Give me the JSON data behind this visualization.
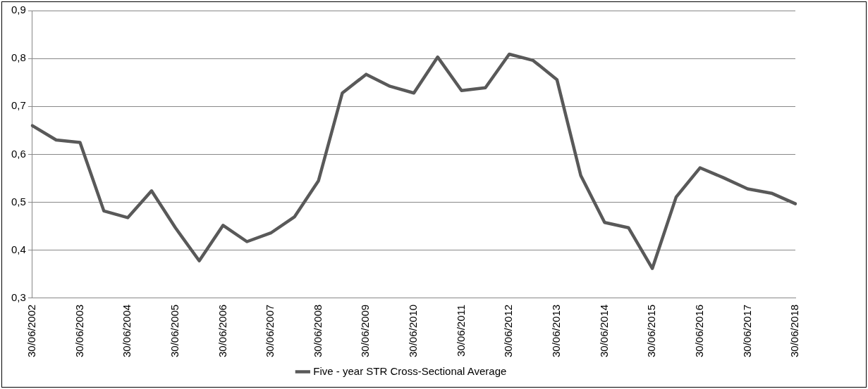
{
  "chart_data": {
    "type": "line",
    "categories": [
      "30/06/2002",
      null,
      "30/06/2003",
      null,
      "30/06/2004",
      null,
      "30/06/2005",
      null,
      "30/06/2006",
      null,
      "30/06/2007",
      null,
      "30/06/2008",
      null,
      "30/06/2009",
      null,
      "30/06/2010",
      null,
      "30/06/2011",
      null,
      "30/06/2012",
      null,
      "30/06/2013",
      null,
      "30/06/2014",
      null,
      "30/06/2015",
      null,
      "30/06/2016",
      null,
      "30/06/2017",
      null,
      "30/06/2018"
    ],
    "series": [
      {
        "name": "Five - year STR Cross-Sectional Average",
        "color": "#595959",
        "values": [
          0.66,
          0.63,
          0.625,
          0.482,
          0.468,
          0.524,
          0.447,
          0.378,
          0.452,
          0.418,
          0.436,
          0.47,
          0.545,
          0.728,
          0.767,
          0.742,
          0.728,
          0.803,
          0.733,
          0.739,
          0.809,
          0.796,
          0.756,
          0.556,
          0.458,
          0.447,
          0.362,
          0.511,
          0.572,
          0.551,
          0.528,
          0.519,
          0.497
        ]
      }
    ],
    "ylim": [
      0.3,
      0.9
    ],
    "yticks": [
      {
        "value": 0.3,
        "label": "0,3"
      },
      {
        "value": 0.4,
        "label": "0,4"
      },
      {
        "value": 0.5,
        "label": "0,5"
      },
      {
        "value": 0.6,
        "label": "0,6"
      },
      {
        "value": 0.7,
        "label": "0,7"
      },
      {
        "value": 0.8,
        "label": "0,8"
      },
      {
        "value": 0.9,
        "label": "0,9"
      }
    ],
    "grid": "y",
    "legend": "bottom",
    "marker": "none",
    "line_style": "solid"
  }
}
